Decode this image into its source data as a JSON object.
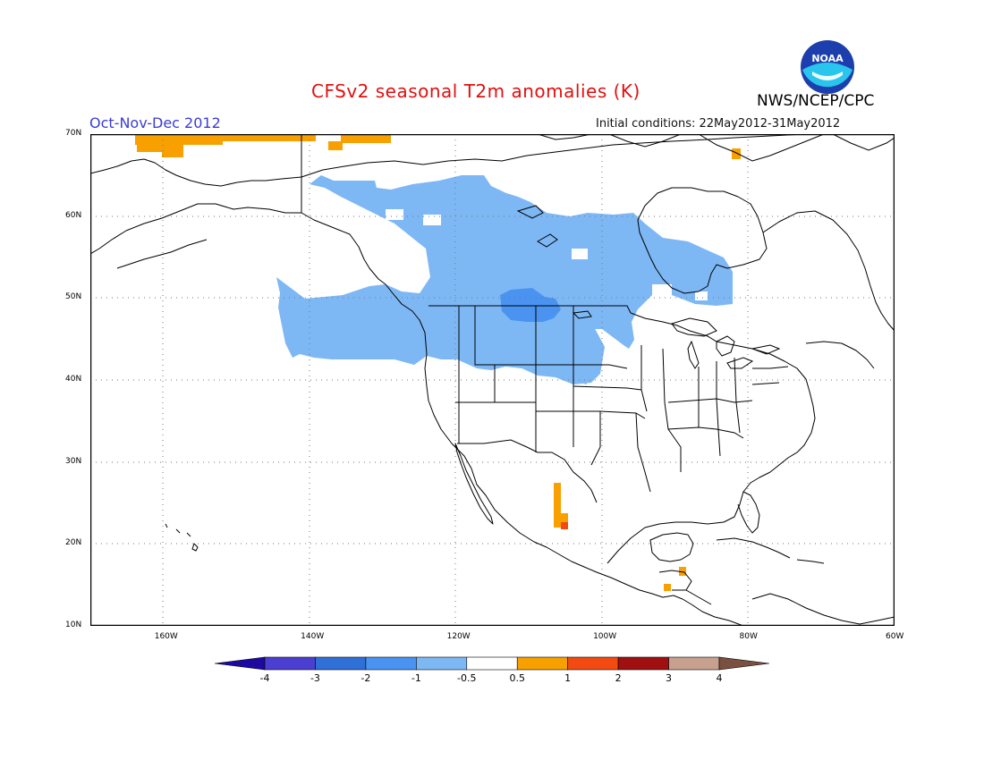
{
  "title": "CFSv2 seasonal T2m anomalies (K)",
  "season": "Oct-Nov-Dec 2012",
  "initial_conditions": "Initial conditions: 22May2012-31May2012",
  "agency": "NWS/NCEP/CPC",
  "logo_text": "NOAA",
  "lat_labels": [
    "70N",
    "60N",
    "50N",
    "40N",
    "30N",
    "20N",
    "10N"
  ],
  "lat_values": [
    70,
    60,
    50,
    40,
    30,
    20,
    10
  ],
  "lon_labels": [
    "160W",
    "140W",
    "120W",
    "100W",
    "80W",
    "60W"
  ],
  "lon_values": [
    -160,
    -140,
    -120,
    -100,
    -80,
    -60
  ],
  "map_extent": {
    "lon_min": -170,
    "lon_max": -60,
    "lat_min": 10,
    "lat_max": 70
  },
  "colorbar": {
    "labels": [
      "-4",
      "-3",
      "-2",
      "-1",
      "-0.5",
      "0.5",
      "1",
      "2",
      "3",
      "4"
    ],
    "colors": [
      "#1e0aa0",
      "#4a3fd0",
      "#2e6fd8",
      "#4a93f0",
      "#7db8f5",
      "#ffffff",
      "#f7a000",
      "#f24a10",
      "#a01010",
      "#c8a090",
      "#7a5040"
    ]
  },
  "anomaly_regions": [
    {
      "name": "canada-cool-band",
      "category": "-1 to -0.5",
      "color": "#7db8f5"
    },
    {
      "name": "northern-plains-cool-core",
      "category": "-2 to -1",
      "color": "#4a93f0"
    },
    {
      "name": "alaska-north-warm",
      "category": "0.5 to 1",
      "color": "#f7a000"
    },
    {
      "name": "mexico-pacific-warm",
      "category": "0.5 to 1",
      "color": "#f7a000"
    },
    {
      "name": "mexico-pacific-warm-core",
      "category": "1 to 2",
      "color": "#f24a10"
    },
    {
      "name": "central-america-warm",
      "category": "0.5 to 1",
      "color": "#f7a000"
    },
    {
      "name": "hudson-bay-warm-spot",
      "category": "0.5 to 1",
      "color": "#f7a000"
    }
  ]
}
